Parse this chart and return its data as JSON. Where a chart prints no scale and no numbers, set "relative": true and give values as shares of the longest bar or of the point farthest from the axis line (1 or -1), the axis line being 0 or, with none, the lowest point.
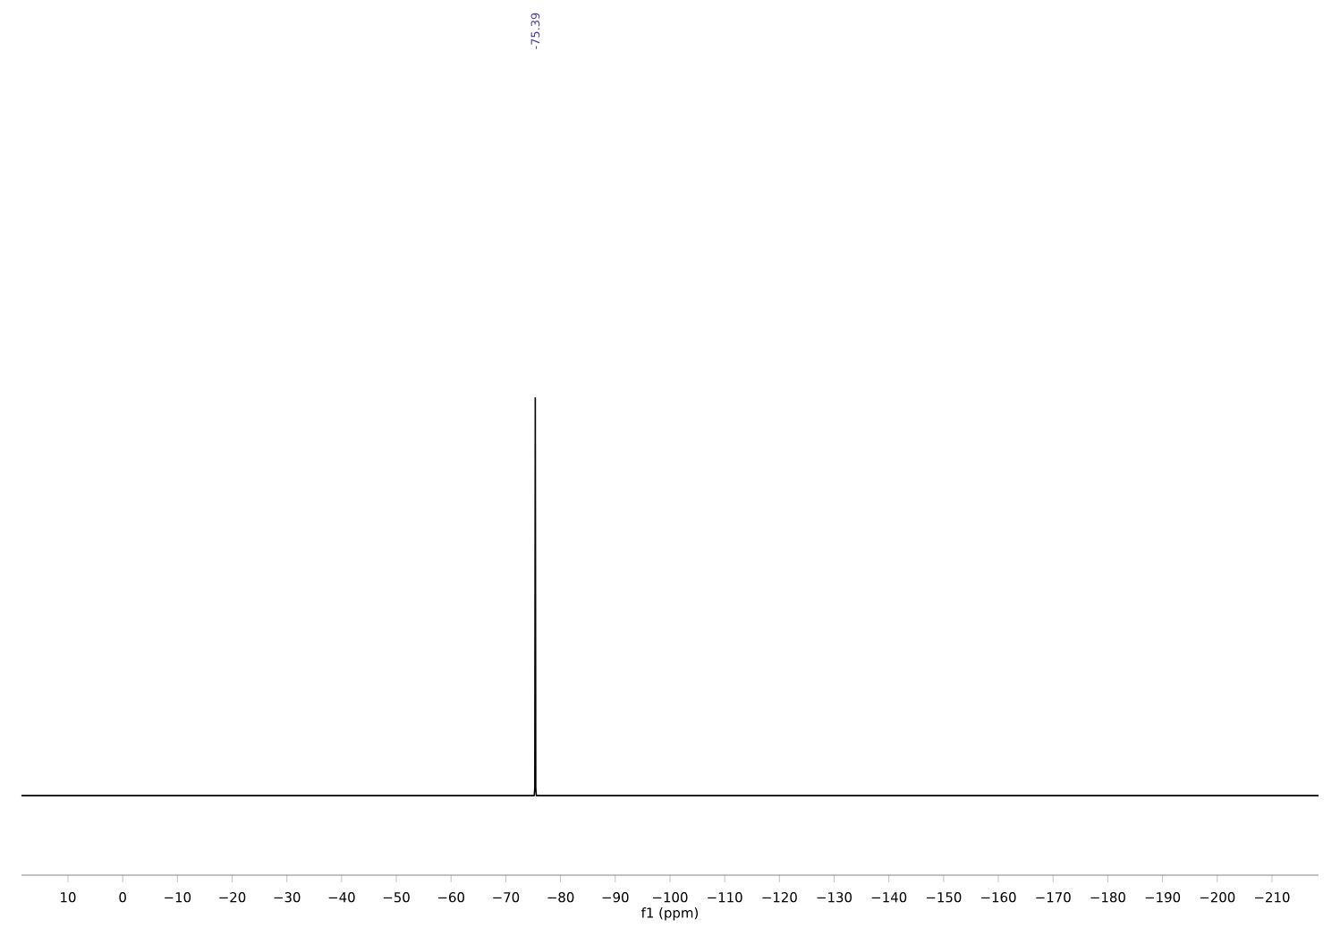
{
  "chart_data": {
    "type": "line",
    "relative": true,
    "xlabel": "f1 (ppm)",
    "xlim": [
      18.5,
      -218.5
    ],
    "xticks": [
      {
        "value": 10,
        "label": "10"
      },
      {
        "value": 0,
        "label": "0"
      },
      {
        "value": -10,
        "label": "−10"
      },
      {
        "value": -20,
        "label": "−20"
      },
      {
        "value": -30,
        "label": "−30"
      },
      {
        "value": -40,
        "label": "−40"
      },
      {
        "value": -50,
        "label": "−50"
      },
      {
        "value": -60,
        "label": "−60"
      },
      {
        "value": -70,
        "label": "−70"
      },
      {
        "value": -80,
        "label": "−80"
      },
      {
        "value": -90,
        "label": "−90"
      },
      {
        "value": -100,
        "label": "−100"
      },
      {
        "value": -110,
        "label": "−110"
      },
      {
        "value": -120,
        "label": "−120"
      },
      {
        "value": -130,
        "label": "−130"
      },
      {
        "value": -140,
        "label": "−140"
      },
      {
        "value": -150,
        "label": "−150"
      },
      {
        "value": -160,
        "label": "−160"
      },
      {
        "value": -170,
        "label": "−170"
      },
      {
        "value": -180,
        "label": "−180"
      },
      {
        "value": -190,
        "label": "−190"
      },
      {
        "value": -200,
        "label": "−200"
      },
      {
        "value": -210,
        "label": "−210"
      }
    ],
    "series": [
      {
        "color": "#000000",
        "x": [
          18.5,
          -75.2,
          -75.3,
          -75.39,
          -75.48,
          -75.58,
          -218.5
        ],
        "values": [
          0,
          0,
          0.02,
          1,
          0.02,
          0,
          0
        ]
      }
    ],
    "annotations": [
      "-75.39"
    ]
  }
}
